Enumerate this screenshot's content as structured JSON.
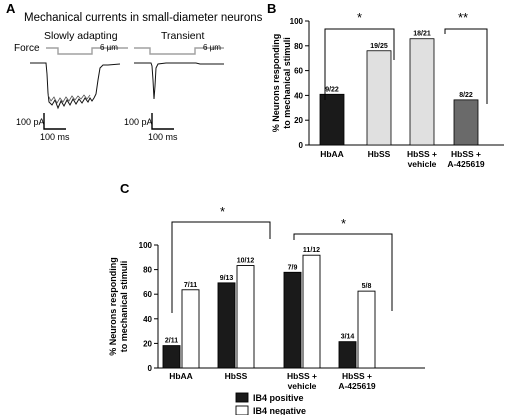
{
  "panel_a": {
    "letter": "A",
    "title": "Mechanical currents in small-diameter neurons",
    "force_label": "Force",
    "slow_label": "Slowly adapting",
    "transient_label": "Transient",
    "step1": "6 µm",
    "step2": "6 µm",
    "scale1_y": "100 pA",
    "scale1_x": "100 ms",
    "scale2_y": "100 pA",
    "scale2_x": "100 ms"
  },
  "panel_b": {
    "letter": "B",
    "sig1": "*",
    "sig2": "**"
  },
  "panel_c": {
    "letter": "C",
    "sig1": "*",
    "sig2": "*"
  },
  "colors": {
    "black": "#1a1a1a",
    "light_gray": "#e0e0e0",
    "dark_gray": "#6a6a6a",
    "white": "#ffffff"
  },
  "chart_data": [
    {
      "type": "bar",
      "panel": "B",
      "categories": [
        "HbAA",
        "HbSS",
        "HbSS + vehicle",
        "HbSS + A-425619"
      ],
      "category_lines": [
        [
          "HbAA"
        ],
        [
          "HbSS"
        ],
        [
          "HbSS +",
          "vehicle"
        ],
        [
          "HbSS +",
          "A-425619"
        ]
      ],
      "values": [
        40.9,
        76.0,
        85.7,
        36.4
      ],
      "data_labels": [
        "9/22",
        "19/25",
        "18/21",
        "8/22"
      ],
      "ylabel_lines": [
        "% Neurons responding",
        "to mechanical stimuli"
      ],
      "ylim": [
        0,
        100
      ],
      "yticks": [
        0,
        20,
        40,
        60,
        80,
        100
      ]
    },
    {
      "type": "bar",
      "panel": "C",
      "categories": [
        "HbAA",
        "HbSS",
        "HbSS + vehicle",
        "HbSS + A-425619"
      ],
      "category_lines": [
        [
          "HbAA"
        ],
        [
          "HbSS"
        ],
        [
          "HbSS +",
          "vehicle"
        ],
        [
          "HbSS +",
          "A-425619"
        ]
      ],
      "series": [
        {
          "name": "IB4 positive",
          "values": [
            18.2,
            69.2,
            77.8,
            21.4
          ],
          "data_labels": [
            "2/11",
            "9/13",
            "7/9",
            "3/14"
          ]
        },
        {
          "name": "IB4 negative",
          "values": [
            63.6,
            83.3,
            91.7,
            62.5
          ],
          "data_labels": [
            "7/11",
            "10/12",
            "11/12",
            "5/8"
          ]
        }
      ],
      "ylabel_lines": [
        "% Neurons responding",
        "to mechanical stimuli"
      ],
      "ylim": [
        0,
        100
      ],
      "yticks": [
        0,
        20,
        40,
        60,
        80,
        100
      ],
      "legend": "bottom"
    }
  ]
}
